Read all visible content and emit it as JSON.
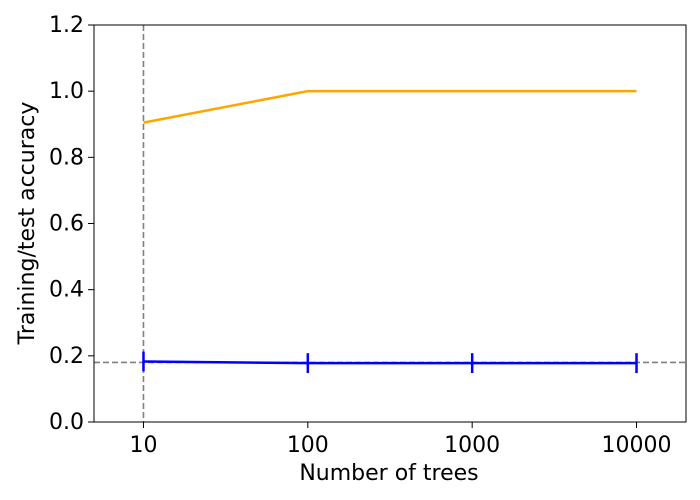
{
  "chart_data": {
    "type": "line",
    "xlabel": "Number of trees",
    "ylabel": "Training/test accuracy",
    "x": [
      10,
      100,
      1000,
      10000
    ],
    "xscale": "log",
    "xlim": [
      5,
      20000
    ],
    "xticks": [
      10,
      100,
      1000,
      10000
    ],
    "ylim": [
      0,
      1.2
    ],
    "yticks": [
      {
        "value": 0,
        "label": "0.0"
      },
      0.2,
      0.4,
      0.6,
      0.8,
      {
        "value": 1,
        "label": "1.0"
      },
      1.2
    ],
    "series": [
      {
        "color": "orange",
        "values": [
          0.905,
          1.0,
          1.0,
          1.0
        ]
      },
      {
        "color": "blue",
        "values": [
          0.183,
          0.178,
          0.178,
          0.178
        ],
        "errors": [
          0.03,
          0.03,
          0.03,
          0.03
        ]
      }
    ],
    "hline": 0.18,
    "vline": 10,
    "reference_color": "gray"
  }
}
